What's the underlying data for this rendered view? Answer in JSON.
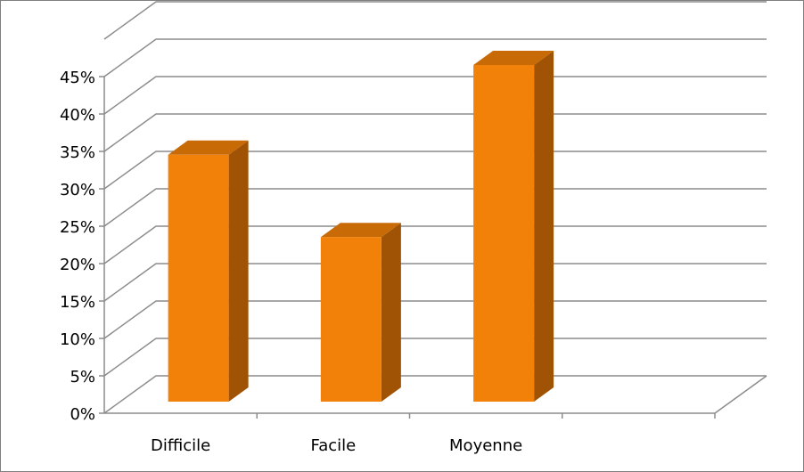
{
  "chart_data": {
    "type": "bar",
    "categories": [
      "Difficile",
      "Facile",
      "Moyenne"
    ],
    "values": [
      33,
      22,
      45
    ],
    "ylim": [
      0,
      45
    ],
    "yticks": [
      "0%",
      "5%",
      "10%",
      "15%",
      "20%",
      "25%",
      "30%",
      "35%",
      "40%",
      "45%"
    ],
    "grid": true,
    "style": "3d-column"
  },
  "colors": {
    "bar_front": "#F28109",
    "bar_side": "#A05304",
    "bar_top": "#C86A06",
    "grid": "#8C8C8C",
    "text": "#000000",
    "border": "#7F7F7F"
  }
}
